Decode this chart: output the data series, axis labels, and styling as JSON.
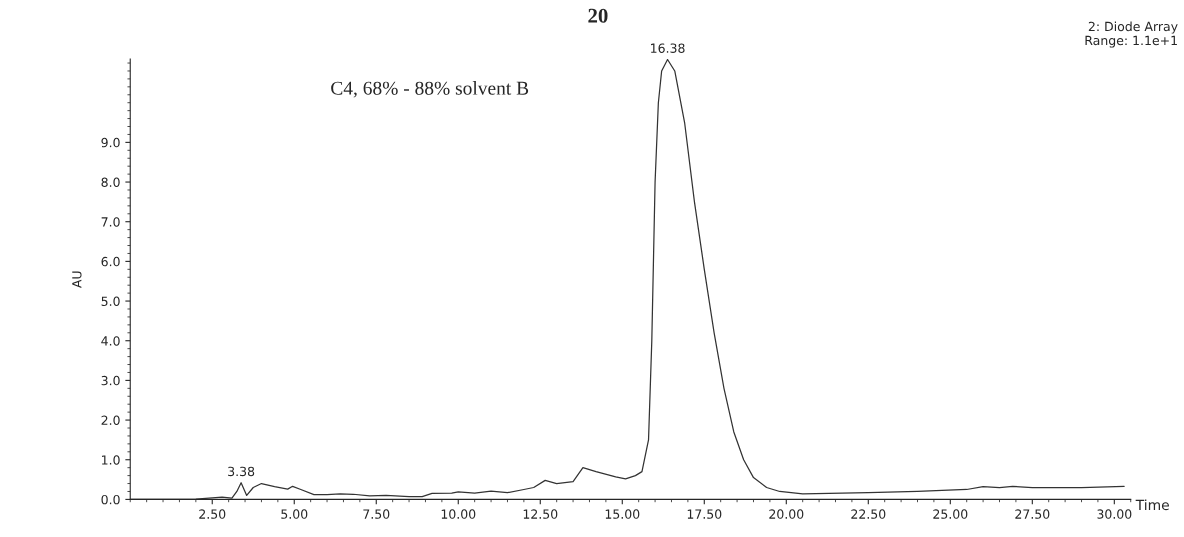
{
  "chart_data": {
    "type": "line",
    "title": "20",
    "xlabel": "Time",
    "ylabel": "AU",
    "annotations": [
      "C4, 68% - 88% solvent B",
      "2: Diode Array\nRange: 1.1e+1",
      {
        "text": "3.38",
        "x": 3.38,
        "y": 0.42
      },
      {
        "text": "16.38",
        "x": 16.38,
        "y": 11.09
      }
    ],
    "x": [
      0,
      2.0,
      2.8,
      3.1,
      3.25,
      3.38,
      3.55,
      3.75,
      4.0,
      4.4,
      4.8,
      4.95,
      5.2,
      5.6,
      6.0,
      6.4,
      6.8,
      7.3,
      7.8,
      8.5,
      8.9,
      9.2,
      9.8,
      10.0,
      10.5,
      11.0,
      11.5,
      12.0,
      12.3,
      12.65,
      13.0,
      13.5,
      13.8,
      14.2,
      14.8,
      15.1,
      15.4,
      15.6,
      15.8,
      15.9,
      16.0,
      16.1,
      16.2,
      16.38,
      16.6,
      16.9,
      17.2,
      17.5,
      17.8,
      18.1,
      18.4,
      18.7,
      19.0,
      19.4,
      19.8,
      20.5,
      22.5,
      24.0,
      25.5,
      26.0,
      26.5,
      26.9,
      27.5,
      29.0,
      30.3
    ],
    "series": [
      {
        "color": "#333333",
        "values": [
          0.0,
          0.01,
          0.06,
          0.03,
          0.2,
          0.42,
          0.1,
          0.3,
          0.4,
          0.32,
          0.26,
          0.33,
          0.25,
          0.12,
          0.12,
          0.14,
          0.13,
          0.09,
          0.1,
          0.07,
          0.07,
          0.15,
          0.16,
          0.19,
          0.16,
          0.21,
          0.17,
          0.25,
          0.3,
          0.48,
          0.4,
          0.45,
          0.8,
          0.7,
          0.57,
          0.52,
          0.6,
          0.7,
          1.5,
          4.0,
          8.0,
          10.0,
          10.8,
          11.09,
          10.8,
          9.5,
          7.5,
          5.8,
          4.2,
          2.8,
          1.7,
          1.0,
          0.55,
          0.3,
          0.2,
          0.14,
          0.17,
          0.2,
          0.25,
          0.32,
          0.3,
          0.33,
          0.3,
          0.3,
          0.33
        ]
      }
    ],
    "xlim": [
      0,
      30.5
    ],
    "ylim": [
      0,
      11.1
    ],
    "xticks": [
      {
        "value": 2.5,
        "label": "2.50"
      },
      {
        "value": 5,
        "label": "5.00"
      },
      {
        "value": 7.5,
        "label": "7.50"
      },
      {
        "value": 10,
        "label": "10.00"
      },
      {
        "value": 12.5,
        "label": "12.50"
      },
      {
        "value": 15,
        "label": "15.00"
      },
      {
        "value": 17.5,
        "label": "17.50"
      },
      {
        "value": 20,
        "label": "20.00"
      },
      {
        "value": 22.5,
        "label": "22.50"
      },
      {
        "value": 25,
        "label": "25.00"
      },
      {
        "value": 27.5,
        "label": "27.50"
      },
      {
        "value": 30,
        "label": "30.00"
      }
    ],
    "yticks": [
      {
        "value": 0,
        "label": "0.0"
      },
      {
        "value": 1,
        "label": "1.0"
      },
      {
        "value": 2,
        "label": "2.0"
      },
      {
        "value": 3,
        "label": "3.0"
      },
      {
        "value": 4,
        "label": "4.0"
      },
      {
        "value": 5,
        "label": "5.0"
      },
      {
        "value": 6,
        "label": "6.0"
      },
      {
        "value": 7,
        "label": "7.0"
      },
      {
        "value": 8,
        "label": "8.0"
      },
      {
        "value": 9,
        "label": "9.0"
      }
    ],
    "grid": false,
    "line_style": "solid",
    "marker": "none"
  }
}
